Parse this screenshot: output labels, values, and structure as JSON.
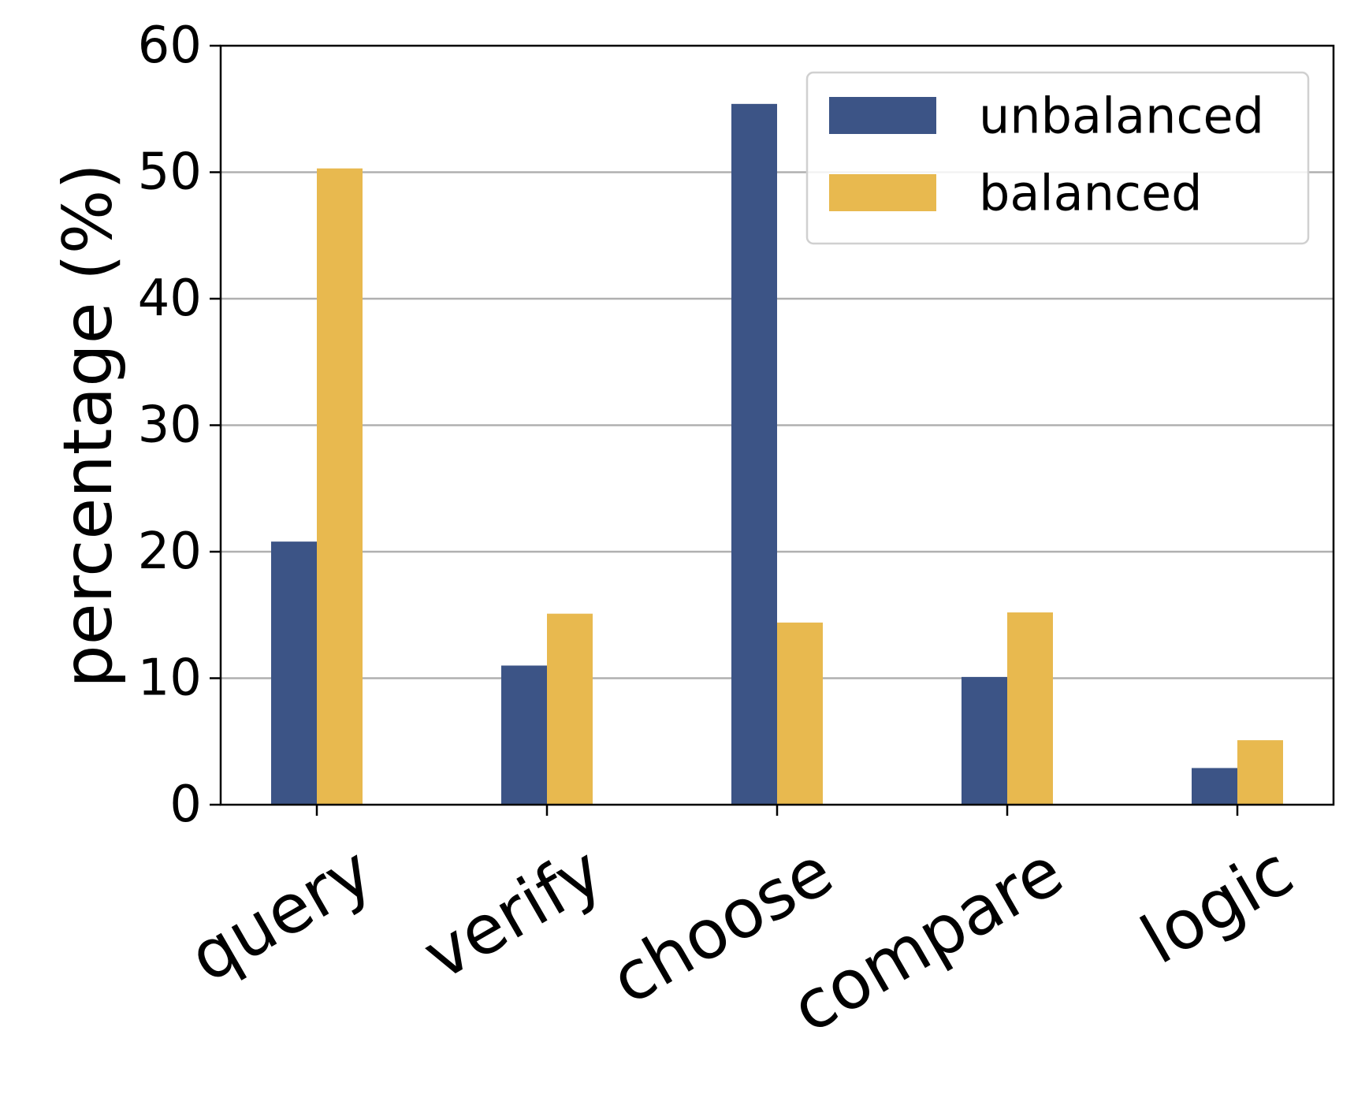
{
  "chart_data": {
    "type": "bar",
    "categories": [
      "query",
      "verify",
      "choose",
      "compare",
      "logic"
    ],
    "series": [
      {
        "name": "unbalanced",
        "values": [
          20.8,
          11.0,
          55.4,
          10.1,
          2.9
        ],
        "color": "#3c5486"
      },
      {
        "name": "balanced",
        "values": [
          50.3,
          15.1,
          14.4,
          15.2,
          5.1
        ],
        "color": "#e8b94f"
      }
    ],
    "title": "",
    "xlabel": "",
    "ylabel": "percentage (%)",
    "ylim": [
      0,
      60
    ],
    "yticks": [
      "0",
      "10",
      "20",
      "30",
      "40",
      "50",
      "60"
    ],
    "grid": true,
    "grid_axis": "y",
    "legend_position": "top-right",
    "grid_color": "#b0b0b0"
  }
}
